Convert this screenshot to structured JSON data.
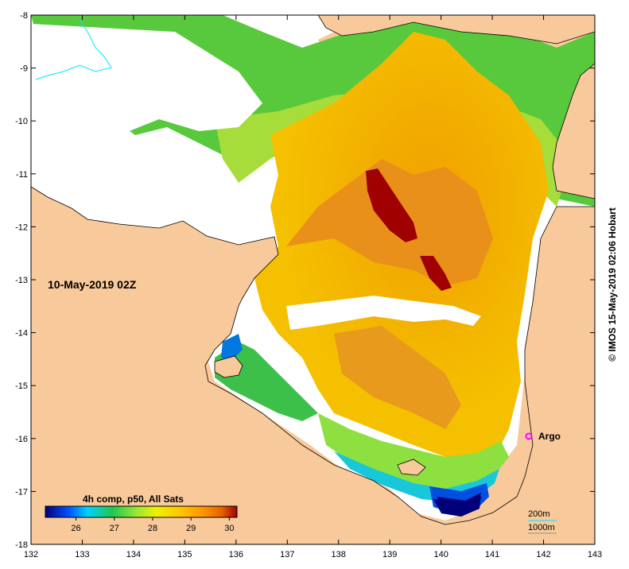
{
  "map": {
    "timestamp": "10-May-2019 02Z",
    "product_label": "4h comp, p50, All Sats",
    "credit": "© IMOS 15-May-2019 02:06 Hobart",
    "float_label": "Argo",
    "contour_labels": [
      "200m",
      "1000m"
    ],
    "lon_ticks": [
      "132",
      "133",
      "134",
      "135",
      "136",
      "137",
      "138",
      "139",
      "140",
      "141",
      "142",
      "143"
    ],
    "lat_ticks": [
      "-8",
      "-9",
      "-10",
      "-11",
      "-12",
      "-13",
      "-14",
      "-15",
      "-16",
      "-17",
      "-18"
    ],
    "colorbar_ticks": [
      "26",
      "27",
      "28",
      "29",
      "30"
    ],
    "colorbar_range": [
      25.2,
      30.2
    ],
    "colors": {
      "land": "#f8c99b",
      "no_data": "#ffffff",
      "argo_marker": "#ff00ff",
      "contour_200m": "#00e5ff",
      "contour_1000m": "#7a9f7a",
      "colormap": [
        "#00007a",
        "#0050ff",
        "#00d2ff",
        "#1ec850",
        "#a0e632",
        "#f0f000",
        "#ffc800",
        "#ff9600",
        "#e66400",
        "#a00000"
      ]
    }
  }
}
